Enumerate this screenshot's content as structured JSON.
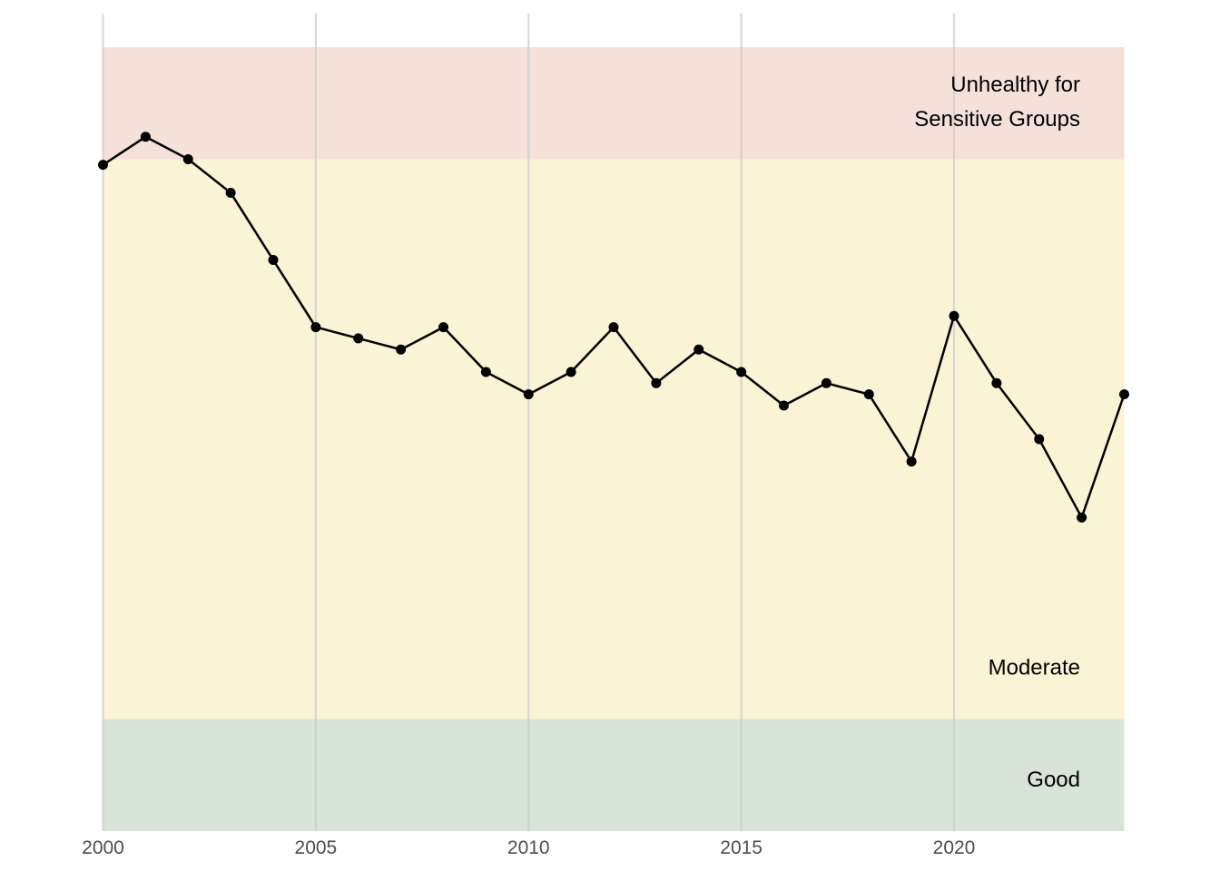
{
  "chart_data": {
    "type": "line",
    "title": "",
    "xlabel": "",
    "ylabel": "",
    "xlim": [
      2000,
      2024
    ],
    "ylim": [
      0,
      73
    ],
    "x_ticks": [
      2000,
      2005,
      2010,
      2015,
      2020
    ],
    "y_ticks_shown": false,
    "grid": "vertical major gridlines only",
    "series": [
      {
        "x": [
          2000,
          2001,
          2002,
          2003,
          2004,
          2005,
          2006,
          2007,
          2008,
          2009,
          2010,
          2011,
          2012,
          2013,
          2014,
          2015,
          2016,
          2017,
          2018,
          2019,
          2020,
          2021,
          2022,
          2023,
          2024
        ],
        "y": [
          59.5,
          62.0,
          60.0,
          57.0,
          51.0,
          45.0,
          44.0,
          43.0,
          45.0,
          41.0,
          39.0,
          41.0,
          45.0,
          40.0,
          43.0,
          41.0,
          38.0,
          40.0,
          39.0,
          33.0,
          46.0,
          40.0,
          35.0,
          28.0,
          39.0
        ],
        "color": "#000000"
      }
    ],
    "bands": [
      {
        "label": "Good",
        "from": 0,
        "to": 10,
        "color": "#d7e4d7"
      },
      {
        "label": "Moderate",
        "from": 10,
        "to": 60,
        "color": "#fbf3d6"
      },
      {
        "label": "Unhealthy for\nSensitive Groups",
        "from": 60,
        "to": 70,
        "color": "#f6e0da"
      }
    ]
  }
}
